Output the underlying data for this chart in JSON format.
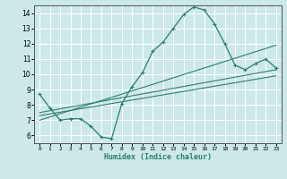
{
  "xlabel": "Humidex (Indice chaleur)",
  "ylabel": "",
  "bg_color": "#cce8e8",
  "grid_color": "#ffffff",
  "line_color": "#2d7d6e",
  "xlim": [
    -0.5,
    23.5
  ],
  "ylim": [
    5.5,
    14.5
  ],
  "xticks": [
    0,
    1,
    2,
    3,
    4,
    5,
    6,
    7,
    8,
    9,
    10,
    11,
    12,
    13,
    14,
    15,
    16,
    17,
    18,
    19,
    20,
    21,
    22,
    23
  ],
  "yticks": [
    6,
    7,
    8,
    9,
    10,
    11,
    12,
    13,
    14
  ],
  "main_line": {
    "x": [
      0,
      1,
      2,
      3,
      4,
      5,
      6,
      7,
      8,
      9,
      10,
      11,
      12,
      13,
      14,
      15,
      16,
      17,
      18,
      19,
      20,
      21,
      22,
      23
    ],
    "y": [
      8.7,
      7.8,
      7.0,
      7.1,
      7.1,
      6.6,
      5.9,
      5.8,
      8.1,
      9.2,
      10.1,
      11.5,
      12.1,
      13.0,
      13.9,
      14.4,
      14.2,
      13.3,
      12.0,
      10.6,
      10.3,
      10.7,
      11.0,
      10.4
    ]
  },
  "regression_lines": [
    {
      "x": [
        0,
        23
      ],
      "y": [
        7.5,
        10.3
      ]
    },
    {
      "x": [
        0,
        23
      ],
      "y": [
        7.3,
        9.9
      ]
    },
    {
      "x": [
        0,
        23
      ],
      "y": [
        7.0,
        11.9
      ]
    }
  ]
}
